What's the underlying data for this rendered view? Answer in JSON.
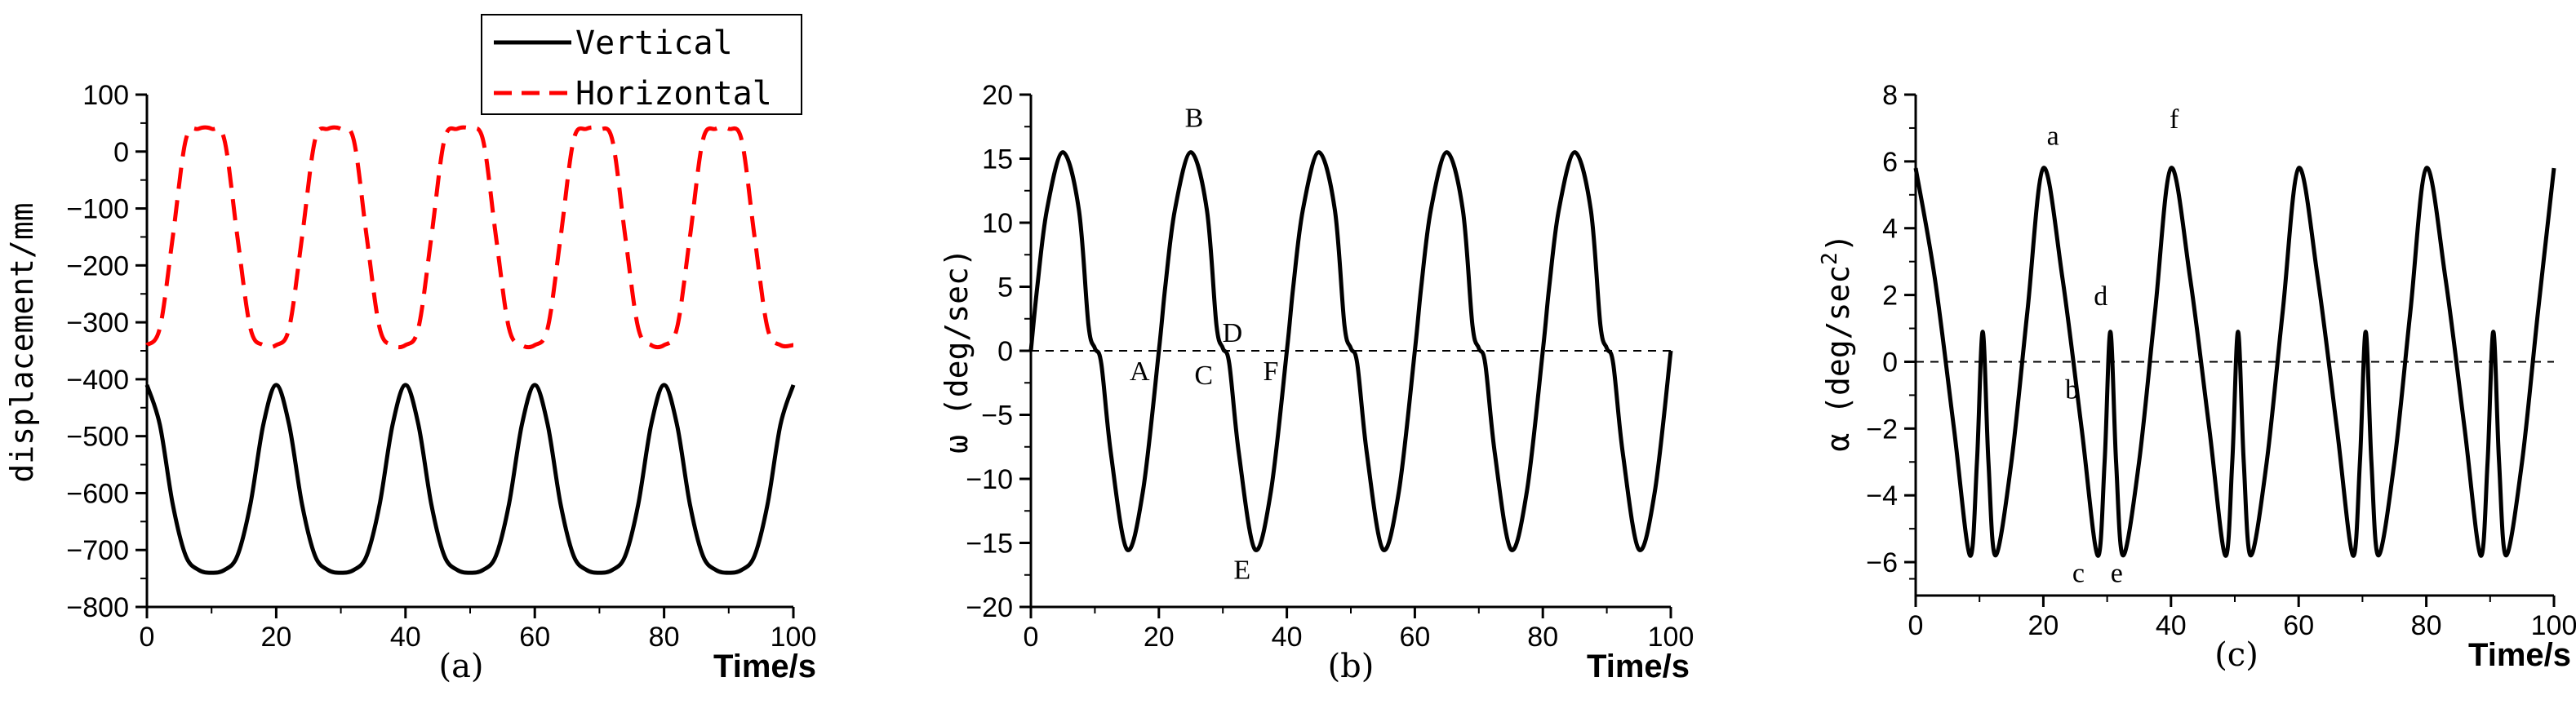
{
  "chart_data": [
    {
      "id": "a",
      "type": "line",
      "caption": "(a)",
      "xlabel": "Time/s",
      "ylabel": "displacement/mm",
      "xlim": [
        0,
        100
      ],
      "ylim": [
        -800,
        100
      ],
      "xticks": [
        "0",
        "20",
        "40",
        "60",
        "80",
        "100"
      ],
      "yticks": [
        "100",
        "0",
        "-100",
        "-200",
        "-300",
        "-400",
        "-500",
        "-600",
        "-700",
        "-800"
      ],
      "legend": {
        "placement": "top-right",
        "entries": [
          "Vertical",
          "Horizontal"
        ]
      },
      "series": [
        {
          "name": "Vertical",
          "style": "solid",
          "color": "#000000",
          "x": [
            0,
            2,
            4,
            6,
            8,
            10,
            12,
            14,
            16,
            18,
            20,
            22,
            24,
            26,
            28,
            30,
            32,
            34,
            36,
            38,
            40,
            42,
            44,
            46,
            48,
            50,
            52,
            54,
            56,
            58,
            60,
            62,
            64,
            66,
            68,
            70,
            72,
            74,
            76,
            78,
            80,
            82,
            84,
            86,
            88,
            90,
            92,
            94,
            96,
            98,
            100
          ],
          "y": [
            -410,
            -480,
            -620,
            -710,
            -735,
            -740,
            -735,
            -710,
            -620,
            -480,
            -410,
            -480,
            -620,
            -710,
            -735,
            -740,
            -735,
            -710,
            -620,
            -480,
            -410,
            -480,
            -620,
            -710,
            -735,
            -740,
            -735,
            -710,
            -620,
            -480,
            -410,
            -480,
            -620,
            -710,
            -735,
            -740,
            -735,
            -710,
            -620,
            -480,
            -410,
            -480,
            -620,
            -710,
            -735,
            -740,
            -735,
            -710,
            -620,
            -480,
            -410
          ]
        },
        {
          "name": "Horizontal",
          "style": "dashed",
          "color": "#ff0000",
          "x": [
            0,
            2,
            4,
            6,
            8,
            10,
            12,
            14,
            16,
            18,
            20,
            22,
            24,
            26,
            28,
            30,
            32,
            34,
            36,
            38,
            40,
            42,
            44,
            46,
            48,
            50,
            52,
            54,
            56,
            58,
            60,
            62,
            64,
            66,
            68,
            70,
            72,
            74,
            76,
            78,
            80,
            82,
            84,
            86,
            88,
            90,
            92,
            94,
            96,
            98,
            100
          ],
          "y": [
            -340,
            -310,
            -150,
            20,
            40,
            40,
            20,
            -150,
            -310,
            -340,
            -340,
            -310,
            -150,
            20,
            40,
            40,
            20,
            -150,
            -310,
            -340,
            -340,
            -310,
            -150,
            20,
            40,
            40,
            20,
            -150,
            -310,
            -340,
            -340,
            -310,
            -150,
            20,
            40,
            40,
            20,
            -150,
            -310,
            -340,
            -340,
            -310,
            -150,
            20,
            40,
            40,
            20,
            -150,
            -310,
            -340,
            -340
          ]
        }
      ]
    },
    {
      "id": "b",
      "type": "line",
      "caption": "(b)",
      "xlabel": "Time/s",
      "ylabel": "ω (deg/sec)",
      "xlim": [
        0,
        100
      ],
      "ylim": [
        -20,
        20
      ],
      "xticks": [
        "0",
        "20",
        "40",
        "60",
        "80",
        "100"
      ],
      "yticks": [
        "20",
        "15",
        "10",
        "5",
        "0",
        "-5",
        "-10",
        "-15",
        "-20"
      ],
      "reference_line": {
        "y": 0,
        "style": "dashed"
      },
      "series": [
        {
          "style": "solid",
          "color": "#000000",
          "x": [
            0,
            1,
            2.5,
            5,
            7.5,
            9,
            10,
            11,
            12.5,
            15,
            17.5,
            20,
            21,
            22.5,
            25,
            27.5,
            29,
            30,
            31,
            32.5,
            35,
            37.5,
            40,
            41,
            42.5,
            45,
            47.5,
            49,
            50,
            51,
            52.5,
            55,
            57.5,
            60,
            61,
            62.5,
            65,
            67.5,
            69,
            70,
            71,
            72.5,
            75,
            77.5,
            80,
            81,
            82.5,
            85,
            87.5,
            89,
            90,
            91,
            92.5,
            95,
            97.5,
            100
          ],
          "y": [
            0,
            5,
            11,
            15.5,
            11,
            2,
            0.2,
            -1,
            -8,
            -15.5,
            -11,
            0,
            5,
            11,
            15.5,
            11,
            2,
            0.2,
            -1,
            -8,
            -15.5,
            -11,
            0,
            5,
            11,
            15.5,
            11,
            2,
            0.2,
            -1,
            -8,
            -15.5,
            -11,
            0,
            5,
            11,
            15.5,
            11,
            2,
            0.2,
            -1,
            -8,
            -15.5,
            -11,
            0,
            5,
            11,
            15.5,
            11,
            2,
            0.2,
            -1,
            -8,
            -15.5,
            -11,
            0
          ]
        }
      ],
      "annotations": [
        {
          "text": "B",
          "x": 25.5,
          "y": 17.5
        },
        {
          "text": "A",
          "x": 17,
          "y": -2.3
        },
        {
          "text": "C",
          "x": 27,
          "y": -2.6
        },
        {
          "text": "D",
          "x": 31.5,
          "y": 0.7
        },
        {
          "text": "F",
          "x": 37.5,
          "y": -2.3
        },
        {
          "text": "E",
          "x": 33,
          "y": -17.8
        }
      ]
    },
    {
      "id": "c",
      "type": "line",
      "caption": "(c)",
      "xlabel": "Time/s",
      "ylabel": "α (deg/sec²)",
      "xlim": [
        0,
        100
      ],
      "ylim": [
        -7,
        8
      ],
      "xticks": [
        "0",
        "20",
        "40",
        "60",
        "80",
        "100"
      ],
      "yticks": [
        "8",
        "6",
        "4",
        "2",
        "0",
        "-2",
        "-4",
        "-6"
      ],
      "reference_line": {
        "y": 0,
        "style": "dashed"
      },
      "series": [
        {
          "style": "solid",
          "color": "#000000",
          "x": [
            0,
            3,
            6,
            8.5,
            9.6,
            10.5,
            11.4,
            12.5,
            15,
            17.5,
            20,
            23,
            26,
            28.5,
            29.6,
            30.5,
            31.4,
            32.5,
            35,
            37.5,
            40,
            43,
            46,
            48.5,
            49.6,
            50.5,
            51.4,
            52.5,
            55,
            57.5,
            60,
            63,
            66,
            68.5,
            69.6,
            70.5,
            71.4,
            72.5,
            75,
            77.5,
            80,
            83,
            86,
            88.5,
            89.6,
            90.5,
            91.4,
            92.5,
            95,
            97.5,
            100
          ],
          "y": [
            5.8,
            2.5,
            -2,
            -5.8,
            -3,
            0.9,
            -3,
            -5.8,
            -3,
            1.5,
            5.8,
            2.5,
            -2,
            -5.8,
            -3,
            0.9,
            -3,
            -5.8,
            -3,
            1.5,
            5.8,
            2.5,
            -2,
            -5.8,
            -3,
            0.9,
            -3,
            -5.8,
            -3,
            1.5,
            5.8,
            2.5,
            -2,
            -5.8,
            -3,
            0.9,
            -3,
            -5.8,
            -3,
            1.5,
            5.8,
            2.5,
            -2,
            -5.8,
            -3,
            0.9,
            -3,
            -5.8,
            -3,
            1.5,
            5.8
          ]
        }
      ],
      "annotations": [
        {
          "text": "a",
          "x": 21.5,
          "y": 6.5
        },
        {
          "text": "f",
          "x": 40.5,
          "y": 7
        },
        {
          "text": "d",
          "x": 29,
          "y": 1.7
        },
        {
          "text": "b",
          "x": 24.5,
          "y": -1.1
        },
        {
          "text": "c",
          "x": 25.5,
          "y": -6.6
        },
        {
          "text": "e",
          "x": 31.5,
          "y": -6.6
        }
      ]
    }
  ]
}
